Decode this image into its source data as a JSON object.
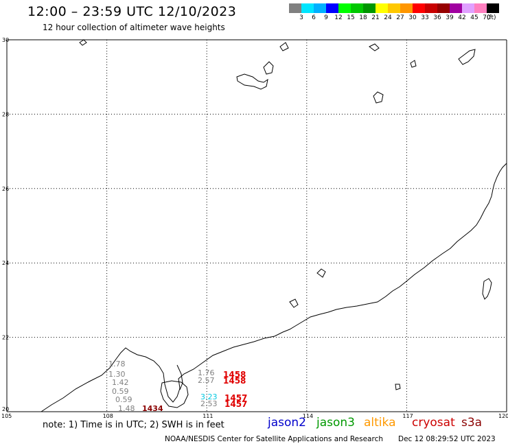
{
  "title": "12:00 – 23:59 UTC 12/10/2023",
  "subtitle": "12 hour collection of altimeter wave heights",
  "colorbar": {
    "unit": "(ft)",
    "levels": [
      "3",
      "6",
      "9",
      "12",
      "15",
      "18",
      "21",
      "24",
      "27",
      "30",
      "33",
      "36",
      "39",
      "42",
      "45",
      "70"
    ],
    "colors": [
      "#808080",
      "#00e5ff",
      "#00b0ff",
      "#0000ff",
      "#00ff00",
      "#00c800",
      "#009600",
      "#ffff00",
      "#ffc800",
      "#ff9600",
      "#ff0000",
      "#c80000",
      "#960000",
      "#a000a0",
      "#e0a0ff",
      "#ff80c0",
      "#000000"
    ]
  },
  "axes": {
    "lon_labels": [
      "105",
      "108",
      "111",
      "114",
      "117",
      "120"
    ],
    "lat_labels": [
      "30",
      "28",
      "26",
      "24",
      "22",
      "20"
    ]
  },
  "observations": [
    {
      "value": "1.78",
      "color": "#808080"
    },
    {
      "value": "1.30",
      "color": "#808080"
    },
    {
      "value": "1.42",
      "color": "#808080"
    },
    {
      "value": "0.59",
      "color": "#808080"
    },
    {
      "value": "0.59",
      "color": "#808080"
    },
    {
      "value": "1.48",
      "color": "#808080"
    },
    {
      "value": "1434",
      "color": "#8b0000"
    },
    {
      "value": "1.76",
      "color": "#808080"
    },
    {
      "value": "2.57",
      "color": "#808080"
    },
    {
      "value": "1458",
      "color": "#e00000"
    },
    {
      "value": "1458",
      "color": "#e00000"
    },
    {
      "value": "3.23",
      "color": "#00c8e0"
    },
    {
      "value": "2.53",
      "color": "#808080"
    },
    {
      "value": "1457",
      "color": "#e00000"
    },
    {
      "value": "1457",
      "color": "#e00000"
    }
  ],
  "note": "note:  1) Time is in UTC;  2) SWH is in feet",
  "satellites": [
    {
      "name": "jason2",
      "color": "#0000cc"
    },
    {
      "name": "jason3",
      "color": "#009900"
    },
    {
      "name": "altika",
      "color": "#ff9900"
    },
    {
      "name": "cryosat",
      "color": "#cc0000"
    },
    {
      "name": "s3a",
      "color": "#8b0000"
    }
  ],
  "credit": "NOAA/NESDIS Center for Satellite Applications and Research",
  "credit_date": "Dec 12 08:29:52 UTC 2023"
}
